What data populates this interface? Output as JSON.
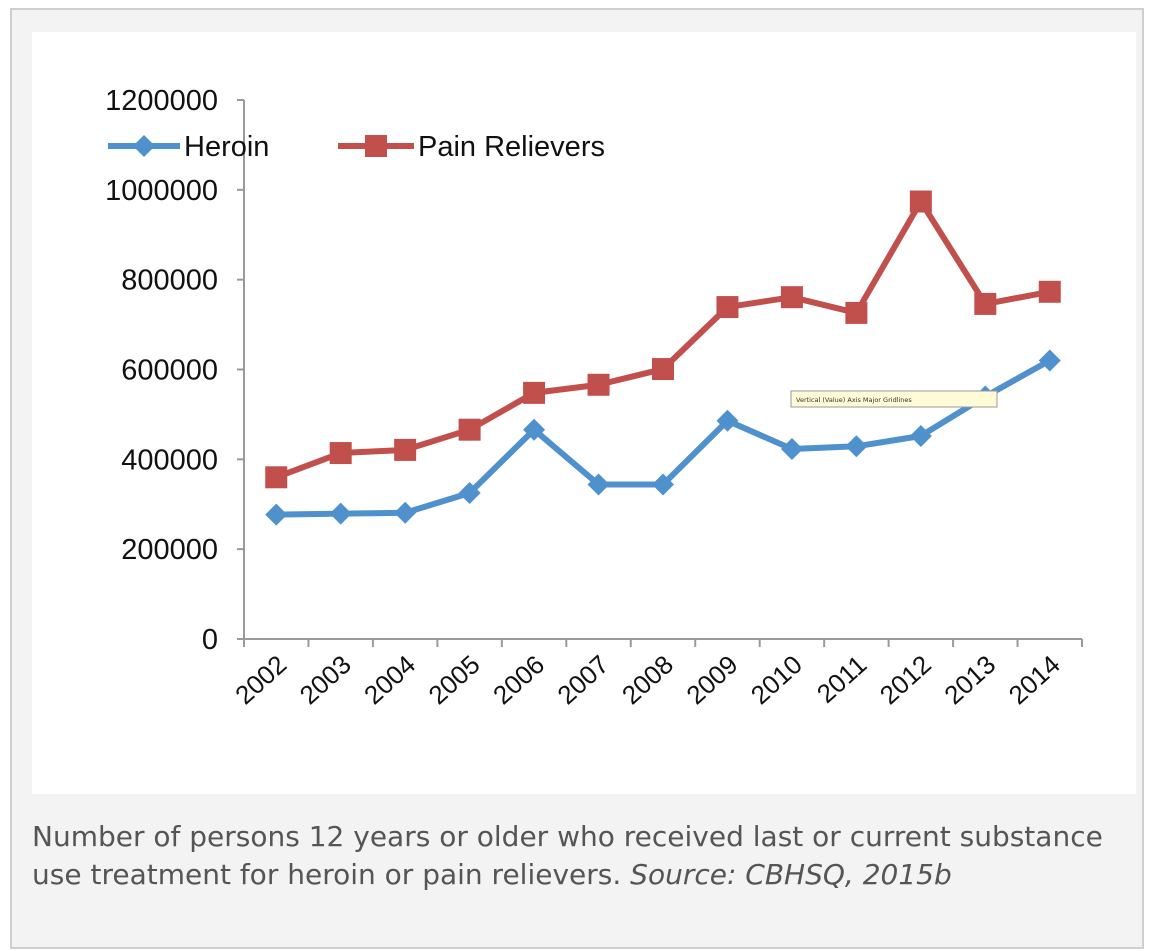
{
  "chart_data": {
    "type": "line",
    "categories": [
      "2002",
      "2003",
      "2004",
      "2005",
      "2006",
      "2007",
      "2008",
      "2009",
      "2010",
      "2011",
      "2012",
      "2013",
      "2014"
    ],
    "series": [
      {
        "name": "Heroin",
        "color": "#4f91cd",
        "marker": "diamond",
        "values": [
          277000,
          279000,
          281000,
          325000,
          466000,
          344000,
          344000,
          486000,
          423000,
          429000,
          452000,
          540000,
          620000
        ]
      },
      {
        "name": "Pain Relievers",
        "color": "#c1504d",
        "marker": "square",
        "values": [
          360000,
          414000,
          421000,
          466000,
          548000,
          566000,
          601000,
          739000,
          761000,
          726000,
          974000,
          746000,
          773000
        ]
      }
    ],
    "y_ticks": [
      "0",
      "200000",
      "400000",
      "600000",
      "800000",
      "1000000",
      "1200000"
    ],
    "ylim": [
      0,
      1200000
    ],
    "grid": false,
    "legend_position": "top-left",
    "tooltip": "Vertical (Value) Axis Major Gridlines"
  },
  "caption": {
    "text": "Number of persons 12 years or older who received last or current substance use treatment for heroin or pain relievers. ",
    "source": "Source: CBHSQ, 2015b"
  }
}
